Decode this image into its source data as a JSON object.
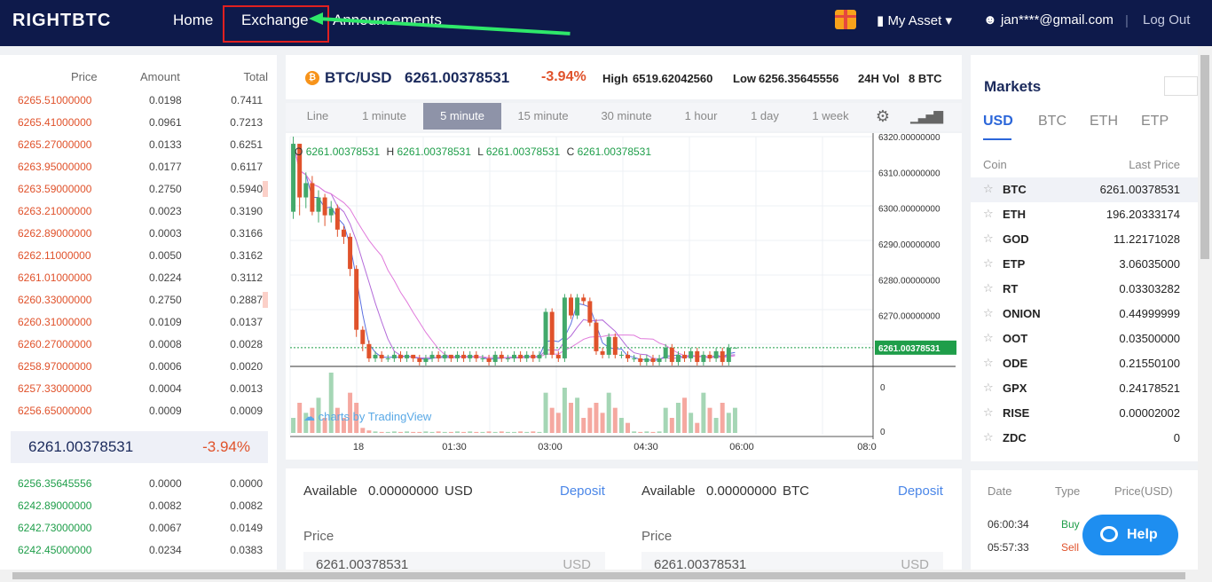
{
  "header": {
    "logo": "RIGHTBTC",
    "nav": [
      "Home",
      "Exchange",
      "Announcements"
    ],
    "my_asset": "My Asset",
    "user": "jan****@gmail.com",
    "logout": "Log Out"
  },
  "orderbook": {
    "headers": {
      "price": "Price",
      "amount": "Amount",
      "total": "Total"
    },
    "asks": [
      {
        "price": "6265.51000000",
        "amount": "0.0198",
        "total": "0.7411"
      },
      {
        "price": "6265.41000000",
        "amount": "0.0961",
        "total": "0.7213"
      },
      {
        "price": "6265.27000000",
        "amount": "0.0133",
        "total": "0.6251"
      },
      {
        "price": "6263.95000000",
        "amount": "0.0177",
        "total": "0.6117"
      },
      {
        "price": "6263.59000000",
        "amount": "0.2750",
        "total": "0.5940"
      },
      {
        "price": "6263.21000000",
        "amount": "0.0023",
        "total": "0.3190"
      },
      {
        "price": "6262.89000000",
        "amount": "0.0003",
        "total": "0.3166"
      },
      {
        "price": "6262.11000000",
        "amount": "0.0050",
        "total": "0.3162"
      },
      {
        "price": "6261.01000000",
        "amount": "0.0224",
        "total": "0.3112"
      },
      {
        "price": "6260.33000000",
        "amount": "0.2750",
        "total": "0.2887"
      },
      {
        "price": "6260.31000000",
        "amount": "0.0109",
        "total": "0.0137"
      },
      {
        "price": "6260.27000000",
        "amount": "0.0008",
        "total": "0.0028"
      },
      {
        "price": "6258.97000000",
        "amount": "0.0006",
        "total": "0.0020"
      },
      {
        "price": "6257.33000000",
        "amount": "0.0004",
        "total": "0.0013"
      },
      {
        "price": "6256.65000000",
        "amount": "0.0009",
        "total": "0.0009"
      }
    ],
    "last_price": "6261.00378531",
    "last_change": "-3.94%",
    "bids": [
      {
        "price": "6256.35645556",
        "amount": "0.0000",
        "total": "0.0000"
      },
      {
        "price": "6242.89000000",
        "amount": "0.0082",
        "total": "0.0082"
      },
      {
        "price": "6242.73000000",
        "amount": "0.0067",
        "total": "0.0149"
      },
      {
        "price": "6242.45000000",
        "amount": "0.0234",
        "total": "0.0383"
      }
    ]
  },
  "ticker": {
    "coin_glyph": "₿",
    "pair": "BTC/USD",
    "price": "6261.00378531",
    "change": "-3.94%",
    "high_label": "High",
    "high": "6519.62042560",
    "low_label": "Low",
    "low": "6256.35645556",
    "vol_label": "24H Vol",
    "vol": "8 BTC"
  },
  "intervals": [
    "Line",
    "1 minute",
    "5 minute",
    "15 minute",
    "30 minute",
    "1 hour",
    "1 day",
    "1 week"
  ],
  "chart": {
    "ohlc": {
      "o": "6261.00378531",
      "h": "6261.00378531",
      "l": "6261.00378531",
      "c": "6261.00378531"
    },
    "ohlc_labels": {
      "o": "O",
      "h": "H",
      "l": "L",
      "c": "C"
    },
    "y_ticks": [
      "6320.00000000",
      "6310.00000000",
      "6300.00000000",
      "6290.00000000",
      "6280.00000000",
      "6270.00000000"
    ],
    "last_label": "6261.00378531",
    "vol_ticks": [
      "0",
      "0"
    ],
    "x_ticks": [
      "18",
      "01:30",
      "03:00",
      "04:30",
      "06:00",
      "08:0"
    ],
    "watermark": "charts by TradingView"
  },
  "chart_data": {
    "type": "candlestick",
    "y_range": [
      6256,
      6320
    ],
    "candles": [
      {
        "o": 6299,
        "c": 6318,
        "h": 6320,
        "l": 6297
      },
      {
        "o": 6318,
        "c": 6303,
        "h": 6318,
        "l": 6298
      },
      {
        "o": 6303,
        "c": 6307,
        "h": 6310,
        "l": 6300
      },
      {
        "o": 6307,
        "c": 6299,
        "h": 6309,
        "l": 6298
      },
      {
        "o": 6299,
        "c": 6303,
        "h": 6305,
        "l": 6296
      },
      {
        "o": 6303,
        "c": 6298,
        "h": 6304,
        "l": 6295
      },
      {
        "o": 6298,
        "c": 6300,
        "h": 6302,
        "l": 6296
      },
      {
        "o": 6300,
        "c": 6294,
        "h": 6301,
        "l": 6292
      },
      {
        "o": 6294,
        "c": 6292,
        "h": 6295,
        "l": 6290
      },
      {
        "o": 6292,
        "c": 6283,
        "h": 6293,
        "l": 6281
      },
      {
        "o": 6283,
        "c": 6266,
        "h": 6284,
        "l": 6264
      },
      {
        "o": 6266,
        "c": 6262,
        "h": 6267,
        "l": 6260
      },
      {
        "o": 6262,
        "c": 6258,
        "h": 6263,
        "l": 6257
      },
      {
        "o": 6258,
        "c": 6259,
        "h": 6260,
        "l": 6257
      },
      {
        "o": 6259,
        "c": 6258,
        "h": 6260,
        "l": 6257
      },
      {
        "o": 6258,
        "c": 6258,
        "h": 6259,
        "l": 6257
      },
      {
        "o": 6258,
        "c": 6259,
        "h": 6260,
        "l": 6257
      },
      {
        "o": 6259,
        "c": 6258,
        "h": 6260,
        "l": 6257
      },
      {
        "o": 6258,
        "c": 6259,
        "h": 6260,
        "l": 6257
      },
      {
        "o": 6259,
        "c": 6258,
        "h": 6259,
        "l": 6257
      },
      {
        "o": 6258,
        "c": 6257,
        "h": 6259,
        "l": 6256
      },
      {
        "o": 6257,
        "c": 6258,
        "h": 6259,
        "l": 6256
      },
      {
        "o": 6258,
        "c": 6259,
        "h": 6260,
        "l": 6257
      },
      {
        "o": 6259,
        "c": 6258,
        "h": 6260,
        "l": 6257
      },
      {
        "o": 6258,
        "c": 6259,
        "h": 6260,
        "l": 6257
      },
      {
        "o": 6259,
        "c": 6258,
        "h": 6259,
        "l": 6257
      },
      {
        "o": 6258,
        "c": 6259,
        "h": 6260,
        "l": 6257
      },
      {
        "o": 6259,
        "c": 6258,
        "h": 6260,
        "l": 6257
      },
      {
        "o": 6258,
        "c": 6259,
        "h": 6260,
        "l": 6257
      },
      {
        "o": 6259,
        "c": 6258,
        "h": 6260,
        "l": 6257
      },
      {
        "o": 6258,
        "c": 6258,
        "h": 6259,
        "l": 6257
      },
      {
        "o": 6258,
        "c": 6257,
        "h": 6259,
        "l": 6256
      },
      {
        "o": 6257,
        "c": 6259,
        "h": 6260,
        "l": 6256
      },
      {
        "o": 6259,
        "c": 6258,
        "h": 6260,
        "l": 6257
      },
      {
        "o": 6258,
        "c": 6258,
        "h": 6259,
        "l": 6257
      },
      {
        "o": 6258,
        "c": 6259,
        "h": 6260,
        "l": 6257
      },
      {
        "o": 6259,
        "c": 6258,
        "h": 6260,
        "l": 6257
      },
      {
        "o": 6258,
        "c": 6259,
        "h": 6260,
        "l": 6257
      },
      {
        "o": 6259,
        "c": 6258,
        "h": 6260,
        "l": 6257
      },
      {
        "o": 6258,
        "c": 6259,
        "h": 6260,
        "l": 6257
      },
      {
        "o": 6259,
        "c": 6271,
        "h": 6272,
        "l": 6258
      },
      {
        "o": 6271,
        "c": 6259,
        "h": 6272,
        "l": 6258
      },
      {
        "o": 6259,
        "c": 6258,
        "h": 6260,
        "l": 6257
      },
      {
        "o": 6258,
        "c": 6275,
        "h": 6276,
        "l": 6257
      },
      {
        "o": 6275,
        "c": 6270,
        "h": 6276,
        "l": 6269
      },
      {
        "o": 6270,
        "c": 6275,
        "h": 6276,
        "l": 6269
      },
      {
        "o": 6275,
        "c": 6274,
        "h": 6276,
        "l": 6273
      },
      {
        "o": 6274,
        "c": 6268,
        "h": 6275,
        "l": 6267
      },
      {
        "o": 6268,
        "c": 6260,
        "h": 6269,
        "l": 6259
      },
      {
        "o": 6260,
        "c": 6259,
        "h": 6261,
        "l": 6258
      },
      {
        "o": 6259,
        "c": 6264,
        "h": 6265,
        "l": 6258
      },
      {
        "o": 6264,
        "c": 6259,
        "h": 6265,
        "l": 6258
      },
      {
        "o": 6259,
        "c": 6259,
        "h": 6260,
        "l": 6258
      },
      {
        "o": 6259,
        "c": 6258,
        "h": 6260,
        "l": 6257
      },
      {
        "o": 6258,
        "c": 6258,
        "h": 6259,
        "l": 6257
      },
      {
        "o": 6258,
        "c": 6257,
        "h": 6259,
        "l": 6256
      },
      {
        "o": 6257,
        "c": 6258,
        "h": 6259,
        "l": 6256
      },
      {
        "o": 6258,
        "c": 6257,
        "h": 6259,
        "l": 6256
      },
      {
        "o": 6257,
        "c": 6258,
        "h": 6259,
        "l": 6256
      },
      {
        "o": 6258,
        "c": 6261,
        "h": 6262,
        "l": 6257
      },
      {
        "o": 6261,
        "c": 6257,
        "h": 6262,
        "l": 6256
      },
      {
        "o": 6257,
        "c": 6259,
        "h": 6260,
        "l": 6256
      },
      {
        "o": 6259,
        "c": 6258,
        "h": 6260,
        "l": 6257
      },
      {
        "o": 6258,
        "c": 6260,
        "h": 6261,
        "l": 6257
      },
      {
        "o": 6260,
        "c": 6257,
        "h": 6261,
        "l": 6256
      },
      {
        "o": 6257,
        "c": 6259,
        "h": 6260,
        "l": 6256
      },
      {
        "o": 6259,
        "c": 6258,
        "h": 6260,
        "l": 6257
      },
      {
        "o": 6258,
        "c": 6260,
        "h": 6261,
        "l": 6257
      },
      {
        "o": 6260,
        "c": 6257,
        "h": 6261,
        "l": 6256
      },
      {
        "o": 6257,
        "c": 6261,
        "h": 6262,
        "l": 6256
      },
      {
        "o": 6261,
        "c": 6261,
        "h": 6261,
        "l": 6261
      }
    ],
    "volumes": [
      3,
      6,
      4,
      5,
      7,
      3,
      12,
      5,
      3,
      8,
      6,
      1,
      0.5,
      0.3,
      0.2,
      0.2,
      0.3,
      0.2,
      0.3,
      0.2,
      0.2,
      0.3,
      0.2,
      0.3,
      0.2,
      0.2,
      0.3,
      0.2,
      0.3,
      0.2,
      0.2,
      0.3,
      0.2,
      0.3,
      0.2,
      0.2,
      0.3,
      0.2,
      0.3,
      0.2,
      8,
      5,
      4,
      9,
      6,
      7,
      3,
      5,
      6,
      4,
      8,
      5,
      3,
      2,
      0.3,
      0.2,
      0.3,
      0.2,
      0.3,
      5,
      3,
      6,
      7,
      4,
      2,
      8,
      5,
      3,
      6,
      4,
      5
    ]
  },
  "markets": {
    "title": "Markets",
    "tabs": [
      "USD",
      "BTC",
      "ETH",
      "ETP"
    ],
    "head": {
      "coin": "Coin",
      "price": "Last Price"
    },
    "rows": [
      {
        "coin": "BTC",
        "price": "6261.00378531"
      },
      {
        "coin": "ETH",
        "price": "196.20333174"
      },
      {
        "coin": "GOD",
        "price": "11.22171028"
      },
      {
        "coin": "ETP",
        "price": "3.06035000"
      },
      {
        "coin": "RT",
        "price": "0.03303282"
      },
      {
        "coin": "ONION",
        "price": "0.44999999"
      },
      {
        "coin": "OOT",
        "price": "0.03500000"
      },
      {
        "coin": "ODE",
        "price": "0.21550100"
      },
      {
        "coin": "GPX",
        "price": "0.24178521"
      },
      {
        "coin": "RISE",
        "price": "0.00002002"
      },
      {
        "coin": "ZDC",
        "price": "0"
      }
    ]
  },
  "history": {
    "head": {
      "date": "Date",
      "type": "Type",
      "price": "Price(USD)"
    },
    "rows": [
      {
        "date": "06:00:34",
        "type": "Buy"
      },
      {
        "date": "05:57:33",
        "type": "Sell"
      }
    ]
  },
  "help": "Help",
  "forms": {
    "buy": {
      "available_label": "Available",
      "available": "0.00000000",
      "currency": "USD",
      "deposit": "Deposit",
      "price_label": "Price",
      "price_value": "6261.00378531",
      "unit": "USD"
    },
    "sell": {
      "available_label": "Available",
      "available": "0.00000000",
      "currency": "BTC",
      "deposit": "Deposit",
      "price_label": "Price",
      "price_value": "6261.00378531",
      "unit": "USD"
    }
  },
  "colors": {
    "up": "#43a96b",
    "down": "#e0522b",
    "header_bg": "#0e1a4b",
    "accent": "#2b66d9"
  }
}
